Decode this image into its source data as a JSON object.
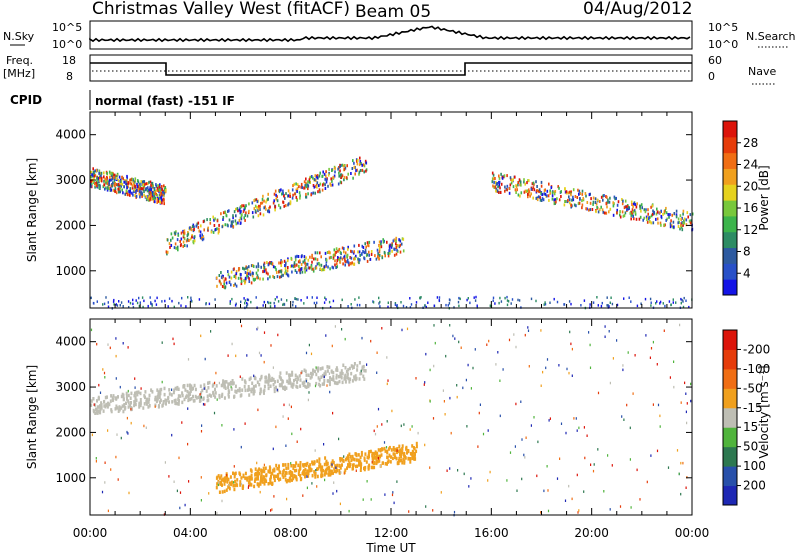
{
  "header": {
    "radar": "Christmas Valley West (fitACF)",
    "beam": "Beam 05",
    "date": "04/Aug/2012"
  },
  "strips": {
    "nsky_label": "N.Sky",
    "nsky_ticks": [
      "10^5",
      "10^0"
    ],
    "nsearch_label": "N.Search",
    "nsearch_ticks": [
      "10^5",
      "10^0"
    ],
    "freq_label": "Freq.",
    "freq_unit": "[MHz]",
    "freq_ticks": [
      "18",
      "8"
    ],
    "nave_label": "Nave",
    "nave_ticks": [
      "60",
      "0"
    ],
    "cpid_label": "CPID",
    "cpid_text": "normal (fast) -151 IF"
  },
  "chart_data": [
    {
      "type": "heatmap",
      "ylabel": "Slant Range [km]",
      "xlabel": "Time UT",
      "x_ticks": [
        "00:00",
        "04:00",
        "08:00",
        "12:00",
        "16:00",
        "20:00",
        "00:00"
      ],
      "y_ticks": [
        "1000",
        "2000",
        "3000",
        "4000"
      ],
      "ylim": [
        180,
        4500
      ],
      "xlim_hours": [
        0,
        24
      ],
      "colorbar": {
        "label": "Power [dB]",
        "ticks": [
          "4",
          "8",
          "12",
          "16",
          "20",
          "24",
          "28"
        ],
        "colors": [
          "#1414e6",
          "#2850c8",
          "#2d5aa0",
          "#2d8c64",
          "#3cb44b",
          "#78c83c",
          "#e6d21e",
          "#f0a01e",
          "#f06e14",
          "#e63c0a",
          "#dc140a"
        ]
      },
      "features": [
        {
          "name": "upper band",
          "t_start": 0.0,
          "t_end": 3.0,
          "range_start": 3100,
          "range_end": 2700
        },
        {
          "name": "middle band",
          "t_start": 3.0,
          "t_end": 11.0,
          "range_start": 1600,
          "range_end": 3400
        },
        {
          "name": "lower band",
          "t_start": 5.0,
          "t_end": 12.5,
          "range_start": 800,
          "range_end": 1600
        },
        {
          "name": "evening band",
          "t_start": 16.0,
          "t_end": 24.0,
          "range_start": 3000,
          "range_end": 2100
        }
      ]
    },
    {
      "type": "heatmap",
      "ylabel": "Slant Range [km]",
      "xlabel": "Time UT",
      "x_ticks": [
        "00:00",
        "04:00",
        "08:00",
        "12:00",
        "16:00",
        "20:00",
        "00:00"
      ],
      "y_ticks": [
        "1000",
        "2000",
        "3000",
        "4000"
      ],
      "ylim": [
        180,
        4500
      ],
      "xlim_hours": [
        0,
        24
      ],
      "colorbar": {
        "label": "Velocity [m s⁻¹]",
        "ticks": [
          "200",
          "100",
          "50",
          "15",
          "-15",
          "-50",
          "-100",
          "-200"
        ],
        "colors": [
          "#1e28b4",
          "#2850aa",
          "#2d7850",
          "#50b43c",
          "#bebeb4",
          "#f0a01e",
          "#f06e14",
          "#e63c0a",
          "#dc140a"
        ]
      },
      "features": [
        {
          "name": "ground scatter",
          "t_start": 0.0,
          "t_end": 11.0,
          "range_start": 2600,
          "range_end": 3400
        },
        {
          "name": "westward flow",
          "t_start": 5.0,
          "t_end": 13.0,
          "range_start": 900,
          "range_end": 1600
        }
      ]
    }
  ]
}
